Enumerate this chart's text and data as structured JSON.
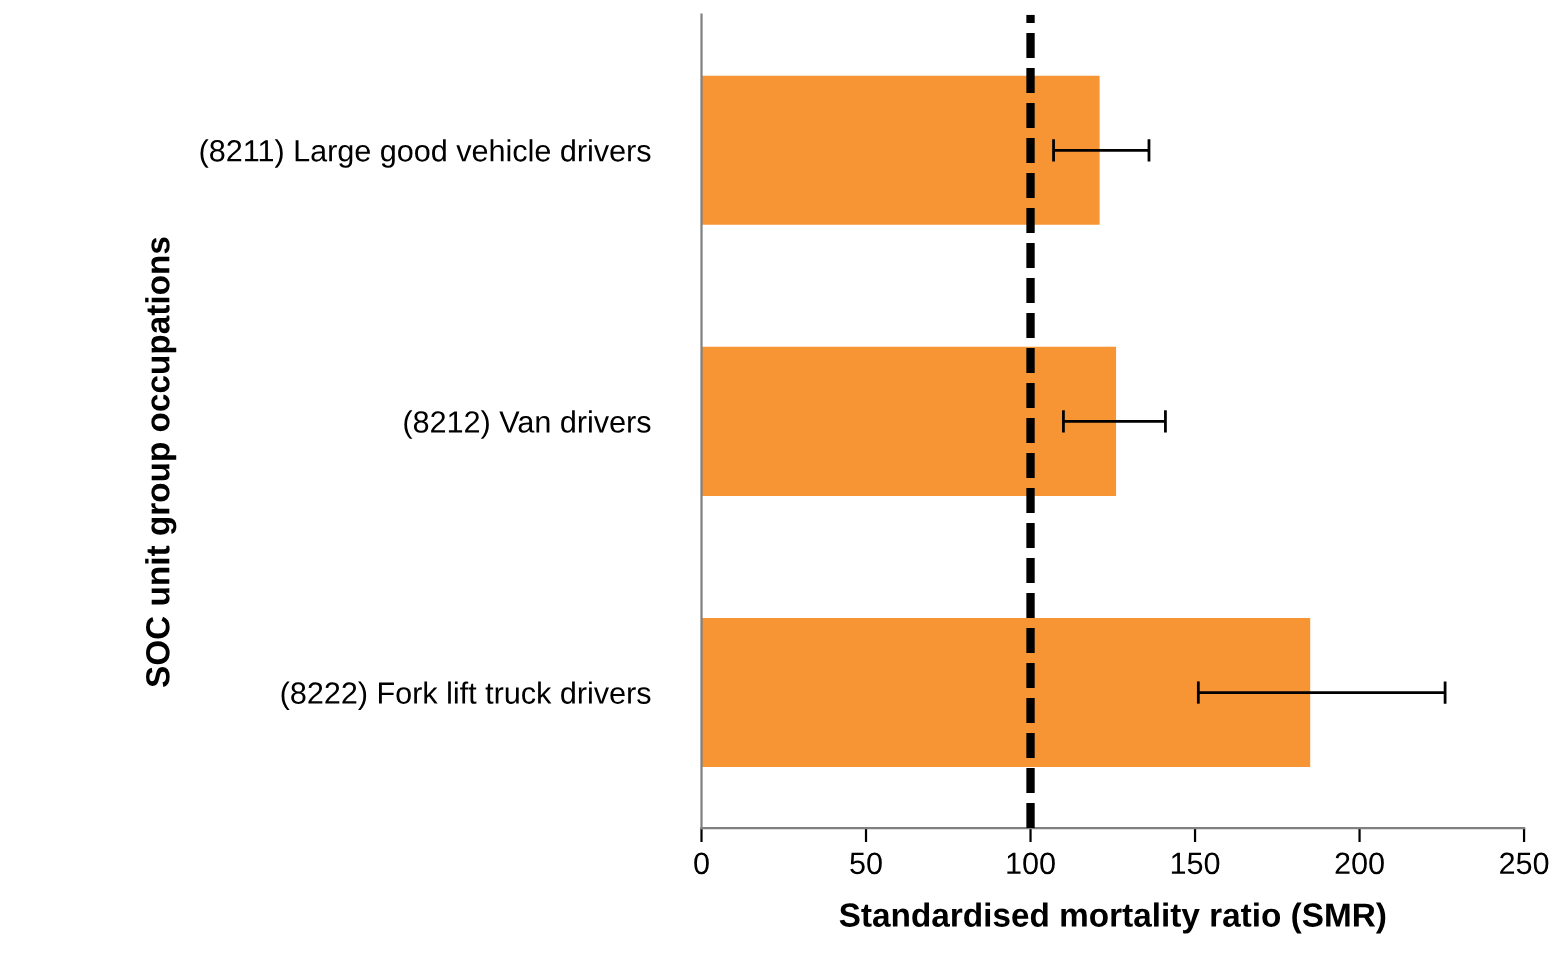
{
  "chart_data": {
    "type": "bar",
    "orientation": "horizontal",
    "xlabel": "Standardised mortality ratio (SMR)",
    "ylabel": "SOC unit group occupations",
    "categories": [
      "(8211) Large good vehicle drivers",
      "(8212) Van drivers",
      "(8222) Fork lift truck drivers"
    ],
    "series": [
      {
        "color": "#f79433",
        "values": [
          121,
          126,
          185
        ],
        "errors": [
          [
            107,
            136
          ],
          [
            110,
            141
          ],
          [
            151,
            226
          ]
        ]
      }
    ],
    "xlim": [
      0,
      250
    ],
    "xticks": [
      0,
      50,
      100,
      150,
      200,
      250
    ],
    "ref_lines": [
      {
        "axis": "x",
        "value": 100,
        "color": "#000000",
        "line_style": "dashed"
      }
    ],
    "grid": false,
    "legend": false
  }
}
